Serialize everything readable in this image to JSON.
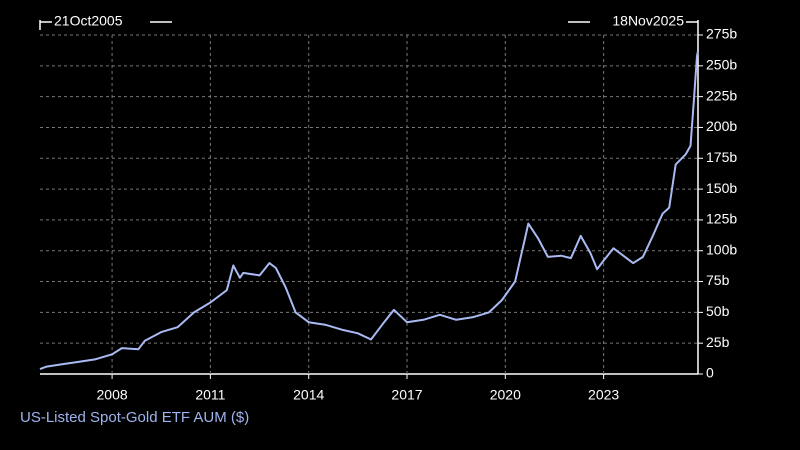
{
  "chart_data": {
    "type": "line",
    "title": "US-Listed Spot-Gold ETF AUM ($)",
    "start_label": "21Oct2005",
    "end_label": "18Nov2025",
    "x": [
      2005.8,
      2006.0,
      2006.5,
      2007.0,
      2007.5,
      2008.0,
      2008.3,
      2008.8,
      2009.0,
      2009.5,
      2010.0,
      2010.5,
      2011.0,
      2011.5,
      2011.7,
      2011.9,
      2012.0,
      2012.5,
      2012.8,
      2013.0,
      2013.3,
      2013.6,
      2014.0,
      2014.5,
      2015.0,
      2015.5,
      2015.9,
      2016.3,
      2016.6,
      2017.0,
      2017.5,
      2018.0,
      2018.5,
      2019.0,
      2019.5,
      2019.9,
      2020.3,
      2020.6,
      2020.7,
      2021.0,
      2021.3,
      2021.7,
      2022.0,
      2022.3,
      2022.6,
      2022.8,
      2023.0,
      2023.3,
      2023.6,
      2023.9,
      2024.2,
      2024.5,
      2024.8,
      2025.0,
      2025.2,
      2025.5,
      2025.65,
      2025.75,
      2025.85,
      2025.88
    ],
    "values": [
      4,
      6,
      8,
      10,
      12,
      16,
      21,
      20,
      27,
      34,
      38,
      50,
      58,
      68,
      88,
      78,
      82,
      80,
      90,
      86,
      70,
      50,
      42,
      40,
      36,
      33,
      28,
      42,
      52,
      42,
      44,
      48,
      44,
      46,
      50,
      60,
      75,
      110,
      122,
      110,
      95,
      96,
      94,
      112,
      98,
      85,
      92,
      102,
      96,
      90,
      95,
      112,
      130,
      135,
      170,
      178,
      185,
      220,
      258,
      262
    ],
    "color": "#a9baf2",
    "xlim": [
      2005.8,
      2025.88
    ],
    "xticks": [
      2008,
      2011,
      2014,
      2017,
      2020,
      2023
    ],
    "ylim": [
      0,
      275
    ],
    "yticks": [
      {
        "value": 0,
        "label": "0"
      },
      {
        "value": 25,
        "label": "25b"
      },
      {
        "value": 50,
        "label": "50b"
      },
      {
        "value": 75,
        "label": "75b"
      },
      {
        "value": 100,
        "label": "100b"
      },
      {
        "value": 125,
        "label": "125b"
      },
      {
        "value": 150,
        "label": "150b"
      },
      {
        "value": 175,
        "label": "175b"
      },
      {
        "value": 200,
        "label": "200b"
      },
      {
        "value": 225,
        "label": "225b"
      },
      {
        "value": 250,
        "label": "250b"
      },
      {
        "value": 275,
        "label": "275b"
      }
    ],
    "grid": true
  }
}
